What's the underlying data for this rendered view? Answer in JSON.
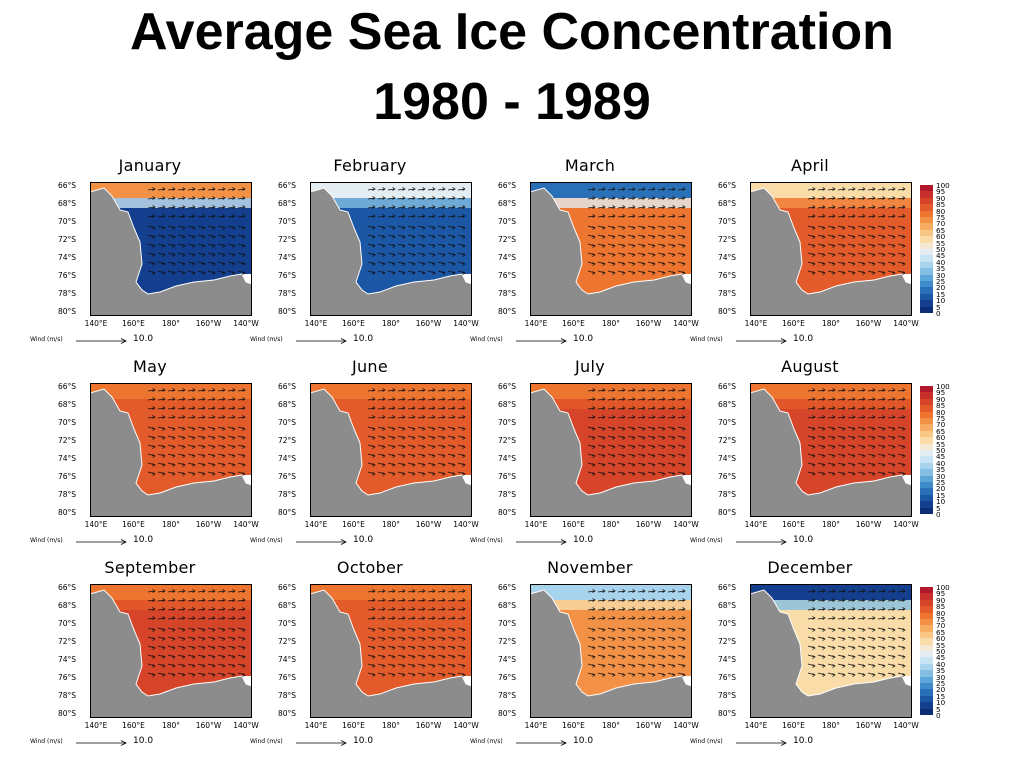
{
  "page": {
    "title_line1": "Average Sea Ice Concentration",
    "title_line2": "1980 - 1989"
  },
  "axes": {
    "lat_labels": [
      "66°S",
      "68°S",
      "70°S",
      "72°S",
      "74°S",
      "76°S",
      "78°S",
      "80°S"
    ],
    "lon_labels": [
      "140°E",
      "160°E",
      "180°",
      "160°W",
      "140°W"
    ],
    "wind_label": "Wind (m/s)",
    "wind_value": "10.0"
  },
  "colorbar": {
    "labels": [
      "100",
      "95",
      "90",
      "85",
      "80",
      "75",
      "70",
      "65",
      "60",
      "55",
      "50",
      "45",
      "40",
      "35",
      "30",
      "25",
      "20",
      "15",
      "10",
      "5",
      "0"
    ],
    "colors": [
      "#b2182b",
      "#c9302c",
      "#d6452a",
      "#e35b2a",
      "#ee7530",
      "#f39147",
      "#f6ad63",
      "#f8c685",
      "#f9dca8",
      "#f4e9d4",
      "#e4eef2",
      "#c9e4f2",
      "#a8d3ec",
      "#84bfe3",
      "#5ea6d7",
      "#3e8cca",
      "#2a70b9",
      "#1c57a6",
      "#133f8e",
      "#0c2d73"
    ]
  },
  "chart_data": {
    "type": "heatmap",
    "title": "Average Sea Ice Concentration 1980 - 1989",
    "unit": "%",
    "color_range": [
      0,
      100
    ],
    "lat_range": [
      "80°S",
      "65°S"
    ],
    "lon_range": [
      "135°E",
      "140°W"
    ],
    "panels": [
      {
        "month": "January",
        "dominant_concentration": 10,
        "ice_edge_concentration": 75
      },
      {
        "month": "February",
        "dominant_concentration": 15,
        "ice_edge_concentration": 50
      },
      {
        "month": "March",
        "dominant_concentration": 80,
        "ice_edge_concentration": 20
      },
      {
        "month": "April",
        "dominant_concentration": 85,
        "ice_edge_concentration": 60
      },
      {
        "month": "May",
        "dominant_concentration": 85,
        "ice_edge_concentration": 80
      },
      {
        "month": "June",
        "dominant_concentration": 85,
        "ice_edge_concentration": 80
      },
      {
        "month": "July",
        "dominant_concentration": 90,
        "ice_edge_concentration": 80
      },
      {
        "month": "August",
        "dominant_concentration": 90,
        "ice_edge_concentration": 80
      },
      {
        "month": "September",
        "dominant_concentration": 90,
        "ice_edge_concentration": 80
      },
      {
        "month": "October",
        "dominant_concentration": 85,
        "ice_edge_concentration": 80
      },
      {
        "month": "November",
        "dominant_concentration": 75,
        "ice_edge_concentration": 40
      },
      {
        "month": "December",
        "dominant_concentration": 60,
        "ice_edge_concentration": 10
      }
    ]
  }
}
